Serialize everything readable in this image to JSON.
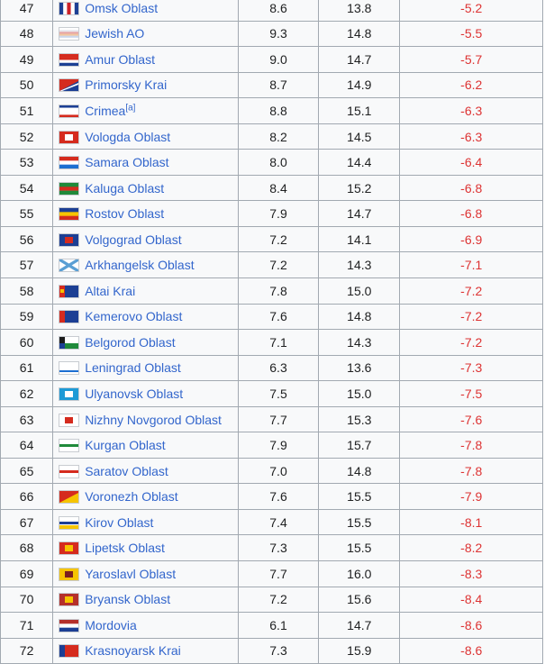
{
  "table": {
    "rows": [
      {
        "rank": "47",
        "name": "Omsk Oblast",
        "note": "",
        "col_a": "8.6",
        "col_b": "13.8",
        "col_c": "-5.2",
        "flag_icon": "omsk-oblast-flag-icon",
        "flag_colors": [
          "#1c3f94",
          "#ffffff",
          "#cc2229",
          "#ffffff",
          "#1c3f94"
        ],
        "flag_layout": "vertical"
      },
      {
        "rank": "48",
        "name": "Jewish AO",
        "note": "",
        "col_a": "9.3",
        "col_b": "14.8",
        "col_c": "-5.5",
        "flag_icon": "jewish-ao-flag-icon",
        "flag_colors": [
          "#ffffff",
          "#e8e8f0",
          "#e7a6a6",
          "#f2c6a0",
          "#c9d6ec",
          "#ffffff"
        ],
        "flag_layout": "horizontal"
      },
      {
        "rank": "49",
        "name": "Amur Oblast",
        "note": "",
        "col_a": "9.0",
        "col_b": "14.7",
        "col_c": "-5.7",
        "flag_icon": "amur-oblast-flag-icon",
        "flag_colors": [
          "#d52b1e",
          "#d52b1e",
          "#ffffff",
          "#1c3f94"
        ],
        "flag_layout": "horizontal"
      },
      {
        "rank": "50",
        "name": "Primorsky Krai",
        "note": "",
        "col_a": "8.7",
        "col_b": "14.9",
        "col_c": "-6.2",
        "flag_icon": "primorsky-krai-flag-icon",
        "flag_colors": [
          "#d52b1e",
          "#ffffff",
          "#1c3f94"
        ],
        "flag_layout": "diagonal"
      },
      {
        "rank": "51",
        "name": "Crimea",
        "note": "[a]",
        "col_a": "8.8",
        "col_b": "15.1",
        "col_c": "-6.3",
        "flag_icon": "crimea-flag-icon",
        "flag_colors": [
          "#1c3f94",
          "#ffffff",
          "#ffffff",
          "#ffffff",
          "#d52b1e"
        ],
        "flag_layout": "horizontal"
      },
      {
        "rank": "52",
        "name": "Vologda Oblast",
        "note": "",
        "col_a": "8.2",
        "col_b": "14.5",
        "col_c": "-6.3",
        "flag_icon": "vologda-oblast-flag-icon",
        "flag_colors": [
          "#d52b1e",
          "#ffffff"
        ],
        "flag_layout": "emblem"
      },
      {
        "rank": "53",
        "name": "Samara Oblast",
        "note": "",
        "col_a": "8.0",
        "col_b": "14.4",
        "col_c": "-6.4",
        "flag_icon": "samara-oblast-flag-icon",
        "flag_colors": [
          "#d52b1e",
          "#ffffff",
          "#1c6fd1"
        ],
        "flag_layout": "horizontal"
      },
      {
        "rank": "54",
        "name": "Kaluga Oblast",
        "note": "",
        "col_a": "8.4",
        "col_b": "15.2",
        "col_c": "-6.8",
        "flag_icon": "kaluga-oblast-flag-icon",
        "flag_colors": [
          "#1f8a3a",
          "#d52b1e",
          "#1f8a3a"
        ],
        "flag_layout": "horizontal"
      },
      {
        "rank": "55",
        "name": "Rostov Oblast",
        "note": "",
        "col_a": "7.9",
        "col_b": "14.7",
        "col_c": "-6.8",
        "flag_icon": "rostov-oblast-flag-icon",
        "flag_colors": [
          "#1c3f94",
          "#f6c400",
          "#d52b1e"
        ],
        "flag_layout": "horizontal"
      },
      {
        "rank": "56",
        "name": "Volgograd Oblast",
        "note": "",
        "col_a": "7.2",
        "col_b": "14.1",
        "col_c": "-6.9",
        "flag_icon": "volgograd-oblast-flag-icon",
        "flag_colors": [
          "#1c3f94",
          "#d52b1e"
        ],
        "flag_layout": "emblem"
      },
      {
        "rank": "57",
        "name": "Arkhangelsk Oblast",
        "note": "",
        "col_a": "7.2",
        "col_b": "14.3",
        "col_c": "-7.1",
        "flag_icon": "arkhangelsk-oblast-flag-icon",
        "flag_colors": [
          "#ffffff",
          "#5a9fd4"
        ],
        "flag_layout": "saltire"
      },
      {
        "rank": "58",
        "name": "Altai Krai",
        "note": "",
        "col_a": "7.8",
        "col_b": "15.0",
        "col_c": "-7.2",
        "flag_icon": "altai-krai-flag-icon",
        "flag_colors": [
          "#1c3f94",
          "#d52b1e",
          "#f6c400"
        ],
        "flag_layout": "vertical-left"
      },
      {
        "rank": "59",
        "name": "Kemerovo Oblast",
        "note": "",
        "col_a": "7.6",
        "col_b": "14.8",
        "col_c": "-7.2",
        "flag_icon": "kemerovo-oblast-flag-icon",
        "flag_colors": [
          "#1c3f94",
          "#d52b1e"
        ],
        "flag_layout": "vertical-left"
      },
      {
        "rank": "60",
        "name": "Belgorod Oblast",
        "note": "",
        "col_a": "7.1",
        "col_b": "14.3",
        "col_c": "-7.2",
        "flag_icon": "belgorod-oblast-flag-icon",
        "flag_colors": [
          "#ffffff",
          "#1c1c1c",
          "#1c3f94",
          "#1f8a3a"
        ],
        "flag_layout": "belgorod"
      },
      {
        "rank": "61",
        "name": "Leningrad Oblast",
        "note": "",
        "col_a": "6.3",
        "col_b": "13.6",
        "col_c": "-7.3",
        "flag_icon": "leningrad-oblast-flag-icon",
        "flag_colors": [
          "#ffffff",
          "#1c6fd1"
        ],
        "flag_layout": "horizontal-thin"
      },
      {
        "rank": "62",
        "name": "Ulyanovsk Oblast",
        "note": "",
        "col_a": "7.5",
        "col_b": "15.0",
        "col_c": "-7.5",
        "flag_icon": "ulyanovsk-oblast-flag-icon",
        "flag_colors": [
          "#1c9ad6",
          "#ffffff"
        ],
        "flag_layout": "emblem"
      },
      {
        "rank": "63",
        "name": "Nizhny Novgorod Oblast",
        "note": "",
        "col_a": "7.7",
        "col_b": "15.3",
        "col_c": "-7.6",
        "flag_icon": "nizhny-novgorod-oblast-flag-icon",
        "flag_colors": [
          "#ffffff",
          "#d52b1e"
        ],
        "flag_layout": "emblem"
      },
      {
        "rank": "64",
        "name": "Kurgan Oblast",
        "note": "",
        "col_a": "7.9",
        "col_b": "15.7",
        "col_c": "-7.8",
        "flag_icon": "kurgan-oblast-flag-icon",
        "flag_colors": [
          "#ffffff",
          "#1f8a3a"
        ],
        "flag_layout": "horizontal-band"
      },
      {
        "rank": "65",
        "name": "Saratov Oblast",
        "note": "",
        "col_a": "7.0",
        "col_b": "14.8",
        "col_c": "-7.8",
        "flag_icon": "saratov-oblast-flag-icon",
        "flag_colors": [
          "#ffffff",
          "#d52b1e"
        ],
        "flag_layout": "horizontal-band"
      },
      {
        "rank": "66",
        "name": "Voronezh Oblast",
        "note": "",
        "col_a": "7.6",
        "col_b": "15.5",
        "col_c": "-7.9",
        "flag_icon": "voronezh-oblast-flag-icon",
        "flag_colors": [
          "#d52b1e",
          "#f6c400"
        ],
        "flag_layout": "diagonal"
      },
      {
        "rank": "67",
        "name": "Kirov Oblast",
        "note": "",
        "col_a": "7.4",
        "col_b": "15.5",
        "col_c": "-8.1",
        "flag_icon": "kirov-oblast-flag-icon",
        "flag_colors": [
          "#ffffff",
          "#1c3f94",
          "#f6c400"
        ],
        "flag_layout": "horizontal-band"
      },
      {
        "rank": "68",
        "name": "Lipetsk Oblast",
        "note": "",
        "col_a": "7.3",
        "col_b": "15.5",
        "col_c": "-8.2",
        "flag_icon": "lipetsk-oblast-flag-icon",
        "flag_colors": [
          "#d52b1e",
          "#f6c400",
          "#1f8a3a"
        ],
        "flag_layout": "emblem"
      },
      {
        "rank": "69",
        "name": "Yaroslavl Oblast",
        "note": "",
        "col_a": "7.7",
        "col_b": "16.0",
        "col_c": "-8.3",
        "flag_icon": "yaroslavl-oblast-flag-icon",
        "flag_colors": [
          "#f6c400",
          "#7a1f1f"
        ],
        "flag_layout": "emblem"
      },
      {
        "rank": "70",
        "name": "Bryansk Oblast",
        "note": "",
        "col_a": "7.2",
        "col_b": "15.6",
        "col_c": "-8.4",
        "flag_icon": "bryansk-oblast-flag-icon",
        "flag_colors": [
          "#b5302b",
          "#f6c400"
        ],
        "flag_layout": "emblem"
      },
      {
        "rank": "71",
        "name": "Mordovia",
        "note": "",
        "col_a": "6.1",
        "col_b": "14.7",
        "col_c": "-8.6",
        "flag_icon": "mordovia-flag-icon",
        "flag_colors": [
          "#b5302b",
          "#ffffff",
          "#1c3f94"
        ],
        "flag_layout": "horizontal"
      },
      {
        "rank": "72",
        "name": "Krasnoyarsk Krai",
        "note": "",
        "col_a": "7.3",
        "col_b": "15.9",
        "col_c": "-8.6",
        "flag_icon": "krasnoyarsk-krai-flag-icon",
        "flag_colors": [
          "#d52b1e",
          "#1c3f94"
        ],
        "flag_layout": "vertical-left"
      }
    ]
  }
}
